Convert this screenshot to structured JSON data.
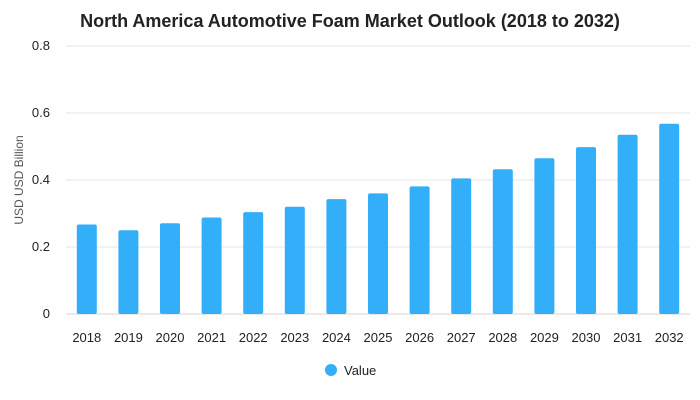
{
  "chart_data": {
    "type": "bar",
    "title": "North America Automotive Foam Market Outlook (2018 to 2032)",
    "xlabel": "",
    "ylabel": "USD USD Billion",
    "ylim": [
      0,
      0.8
    ],
    "yticks": [
      "0",
      "0.2",
      "0.4",
      "0.6",
      "0.8"
    ],
    "grid": true,
    "legend_position": "bottom-center",
    "categories": [
      "2018",
      "2019",
      "2020",
      "2021",
      "2022",
      "2023",
      "2024",
      "2025",
      "2026",
      "2027",
      "2028",
      "2029",
      "2030",
      "2031",
      "2032"
    ],
    "series": [
      {
        "name": "Value",
        "color": "#33aef8",
        "values": [
          0.267,
          0.25,
          0.271,
          0.288,
          0.304,
          0.32,
          0.343,
          0.36,
          0.381,
          0.405,
          0.432,
          0.465,
          0.498,
          0.535,
          0.568
        ]
      }
    ]
  }
}
